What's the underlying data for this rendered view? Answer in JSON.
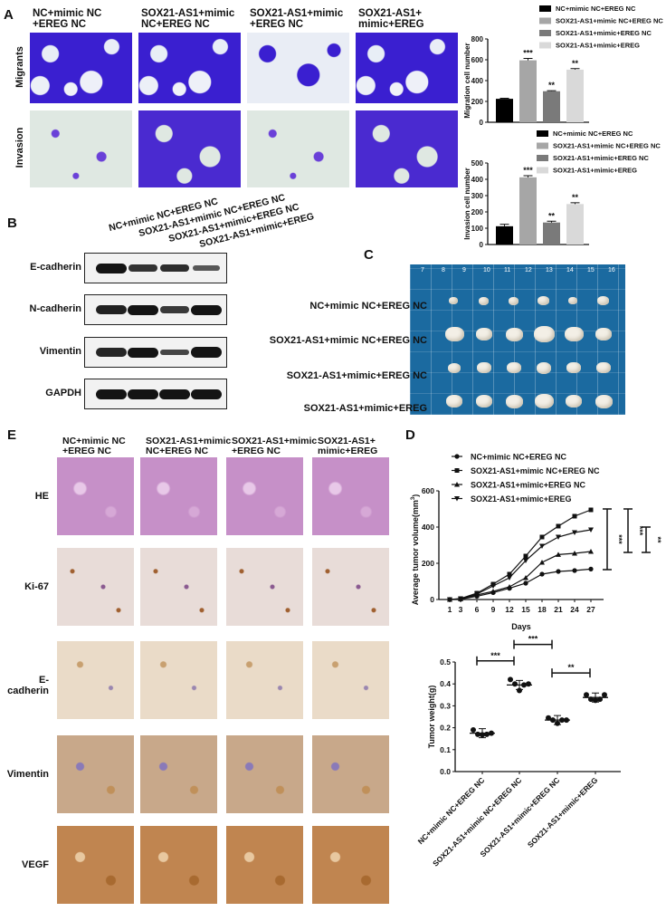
{
  "panels": {
    "A": "A",
    "B": "B",
    "C": "C",
    "D": "D",
    "E": "E"
  },
  "groups": [
    "NC+mimic NC+EREG NC",
    "SOX21-AS1+mimic NC+EREG NC",
    "SOX21-AS1+mimic+EREG NC",
    "SOX21-AS1+mimic+EREG"
  ],
  "panel_a": {
    "headers": [
      [
        "NC+mimic NC",
        "+EREG NC"
      ],
      [
        "SOX21-AS1+mimic",
        "NC+EREG NC"
      ],
      [
        "SOX21-AS1+mimic",
        "+EREG NC"
      ],
      [
        "SOX21-AS1+",
        "mimic+EREG"
      ]
    ],
    "rows": [
      "Migrants",
      "Invasion"
    ]
  },
  "panel_b": {
    "proteins": [
      "E-cadherin",
      "N-cadherin",
      "Vimentin",
      "GAPDH"
    ],
    "band_intensity": [
      [
        1.0,
        0.75,
        0.8,
        0.45
      ],
      [
        0.9,
        1.0,
        0.7,
        1.0
      ],
      [
        0.85,
        1.0,
        0.6,
        1.1
      ],
      [
        1.0,
        1.0,
        1.0,
        1.0
      ]
    ]
  },
  "panel_c": {
    "ruler_numbers": [
      "7",
      "8",
      "9",
      "10",
      "11",
      "12",
      "13",
      "14",
      "15",
      "16"
    ]
  },
  "panel_e": {
    "headers": [
      [
        "NC+mimic NC",
        "+EREG NC"
      ],
      [
        "SOX21-AS1+mimic",
        "NC+EREG NC"
      ],
      [
        "SOX21-AS1+mimic",
        "+EREG NC"
      ],
      [
        "SOX21-AS1+",
        "mimic+EREG"
      ]
    ],
    "rows": [
      "HE",
      "Ki-67",
      "E-cadherin",
      "Vimentin",
      "VEGF"
    ]
  },
  "colors": {
    "bar": [
      "#000000",
      "#a6a6a6",
      "#7a7a7a",
      "#d9d9d9"
    ],
    "stain_blue": "#3a1fd0",
    "photo_blue": "#1b6aa0"
  },
  "chart_data": [
    {
      "type": "bar",
      "ylabel": "Migration cell number",
      "ylim": [
        0,
        800
      ],
      "yticks": [
        "0",
        "200",
        "400",
        "600",
        "800"
      ],
      "legend": [
        "NC+mimic NC+EREG NC",
        "SOX21-AS1+mimic NC+EREG NC",
        "SOX21-AS1+mimic+EREG NC",
        "SOX21-AS1+mimic+EREG"
      ],
      "values": [
        225,
        595,
        298,
        505
      ],
      "errors": [
        5,
        18,
        5,
        10
      ],
      "significance": [
        "",
        "***",
        "**",
        "**"
      ]
    },
    {
      "type": "bar",
      "ylabel": "Invasion cell number",
      "ylim": [
        0,
        500
      ],
      "yticks": [
        "0",
        "100",
        "200",
        "300",
        "400",
        "500"
      ],
      "legend": [
        "NC+mimic NC+EREG NC",
        "SOX21-AS1+mimic NC+EREG NC",
        "SOX21-AS1+mimic+EREG NC",
        "SOX21-AS1+mimic+EREG"
      ],
      "values": [
        112,
        412,
        135,
        248
      ],
      "errors": [
        12,
        10,
        8,
        8
      ],
      "significance": [
        "",
        "***",
        "**",
        "**"
      ]
    },
    {
      "type": "line",
      "xlabel": "Days",
      "ylabel": "Average tumor volume(mm",
      "ylabel_sup": "3",
      "ylabel_end": ")",
      "ylim": [
        0,
        600
      ],
      "yticks": [
        "0",
        "200",
        "400",
        "600"
      ],
      "x": [
        1,
        3,
        6,
        9,
        12,
        15,
        18,
        21,
        24,
        27
      ],
      "series": [
        {
          "name": "NC+mimic NC+EREG NC",
          "marker": "circle",
          "values": [
            0,
            2,
            18,
            38,
            62,
            90,
            140,
            155,
            160,
            168
          ]
        },
        {
          "name": "SOX21-AS1+mimic NC+EREG NC",
          "marker": "square",
          "values": [
            0,
            5,
            35,
            85,
            140,
            240,
            345,
            405,
            460,
            495
          ]
        },
        {
          "name": "SOX21-AS1+mimic+EREG NC",
          "marker": "triangle",
          "values": [
            0,
            3,
            25,
            45,
            70,
            120,
            205,
            248,
            255,
            265
          ]
        },
        {
          "name": "SOX21-AS1+mimic+EREG",
          "marker": "triangle-down",
          "values": [
            0,
            4,
            30,
            75,
            120,
            215,
            295,
            345,
            370,
            385
          ]
        }
      ],
      "brackets": [
        {
          "from": 165,
          "to": 500,
          "label": "***"
        },
        {
          "from": 260,
          "to": 500,
          "label": "***"
        },
        {
          "from": 260,
          "to": 400,
          "label": "**"
        }
      ]
    },
    {
      "type": "scatter",
      "ylabel": "Tumor weight(g)",
      "ylim": [
        0,
        0.5
      ],
      "yticks": [
        "0.0",
        "0.1",
        "0.2",
        "0.3",
        "0.4",
        "0.5"
      ],
      "categories": [
        "NC+mimic NC+EREG NC",
        "SOX21-AS1+mimic NC+EREG NC",
        "SOX21-AS1+mimic+EREG NC",
        "SOX21-AS1+mimic+EREG"
      ],
      "points": [
        [
          0.19,
          0.17,
          0.168,
          0.17,
          0.175
        ],
        [
          0.42,
          0.4,
          0.37,
          0.395,
          0.4
        ],
        [
          0.245,
          0.235,
          0.22,
          0.235,
          0.235
        ],
        [
          0.35,
          0.33,
          0.325,
          0.33,
          0.35
        ]
      ],
      "means": [
        0.175,
        0.395,
        0.235,
        0.338
      ],
      "brackets": [
        {
          "a": 0,
          "b": 1,
          "y": 0.505,
          "label": "***"
        },
        {
          "a": 1,
          "b": 2,
          "y": 0.58,
          "label": "***"
        },
        {
          "a": 2,
          "b": 3,
          "y": 0.45,
          "label": "**"
        }
      ]
    }
  ]
}
